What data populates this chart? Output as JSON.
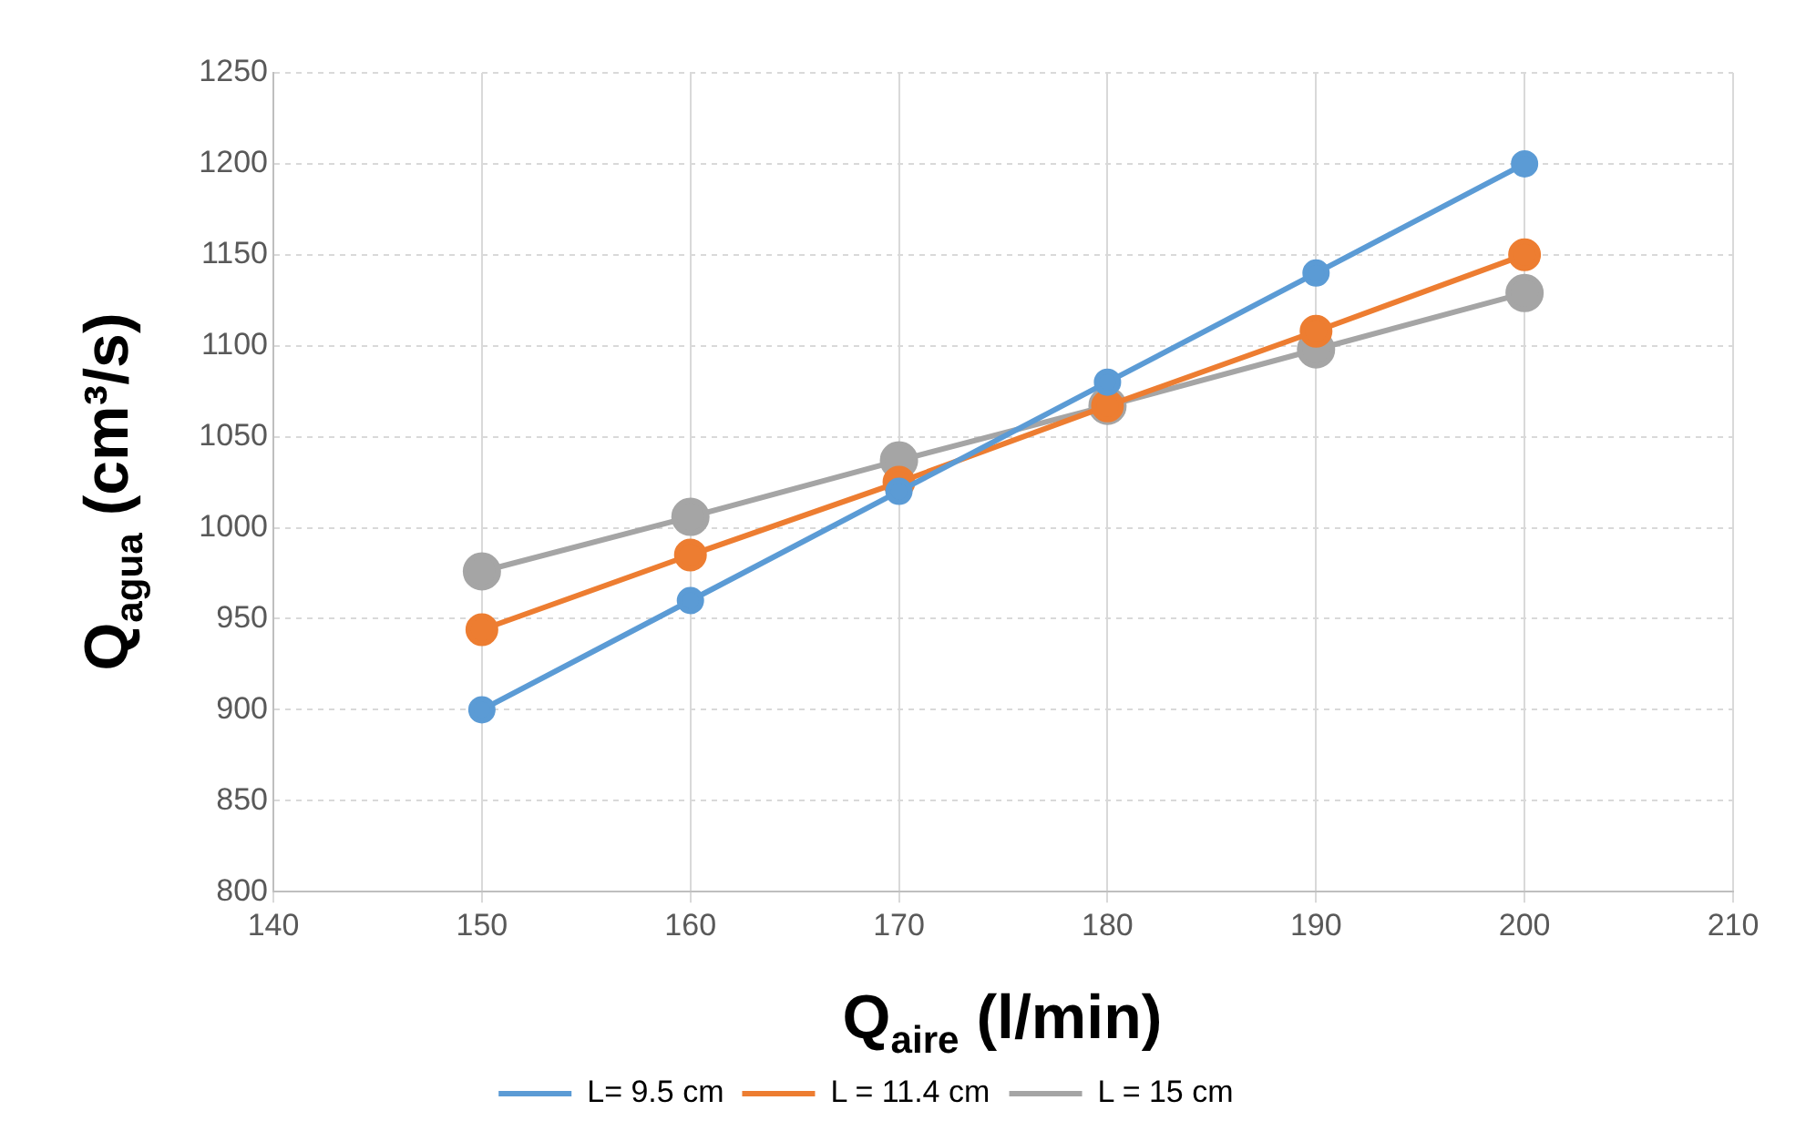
{
  "chart_data": {
    "type": "line",
    "xlabel": "Q$_{aire}$ (l/min)",
    "ylabel": "Q$_{agua}$ (cm³/s)",
    "x": [
      150,
      160,
      170,
      180,
      190,
      200
    ],
    "series": [
      {
        "name": "L= 9.5 cm",
        "color": "#5b9bd5",
        "values": [
          900,
          960,
          1020,
          1080,
          1140,
          1200
        ]
      },
      {
        "name": "L = 11.4 cm",
        "color": "#ed7d31",
        "values": [
          944,
          985,
          1025,
          1067,
          1108,
          1150
        ]
      },
      {
        "name": "L = 15 cm",
        "color": "#a5a5a5",
        "values": [
          976,
          1006,
          1037,
          1067,
          1098,
          1129
        ]
      }
    ],
    "xlim": [
      140,
      210
    ],
    "xticks": [
      140,
      150,
      160,
      170,
      180,
      190,
      200,
      210
    ],
    "ylim": [
      800,
      1250
    ],
    "yticks": [
      800,
      850,
      900,
      950,
      1000,
      1050,
      1100,
      1150,
      1200,
      1250
    ],
    "grid": true,
    "legend": "bottom",
    "marker": "circle",
    "line_style": "solid"
  }
}
